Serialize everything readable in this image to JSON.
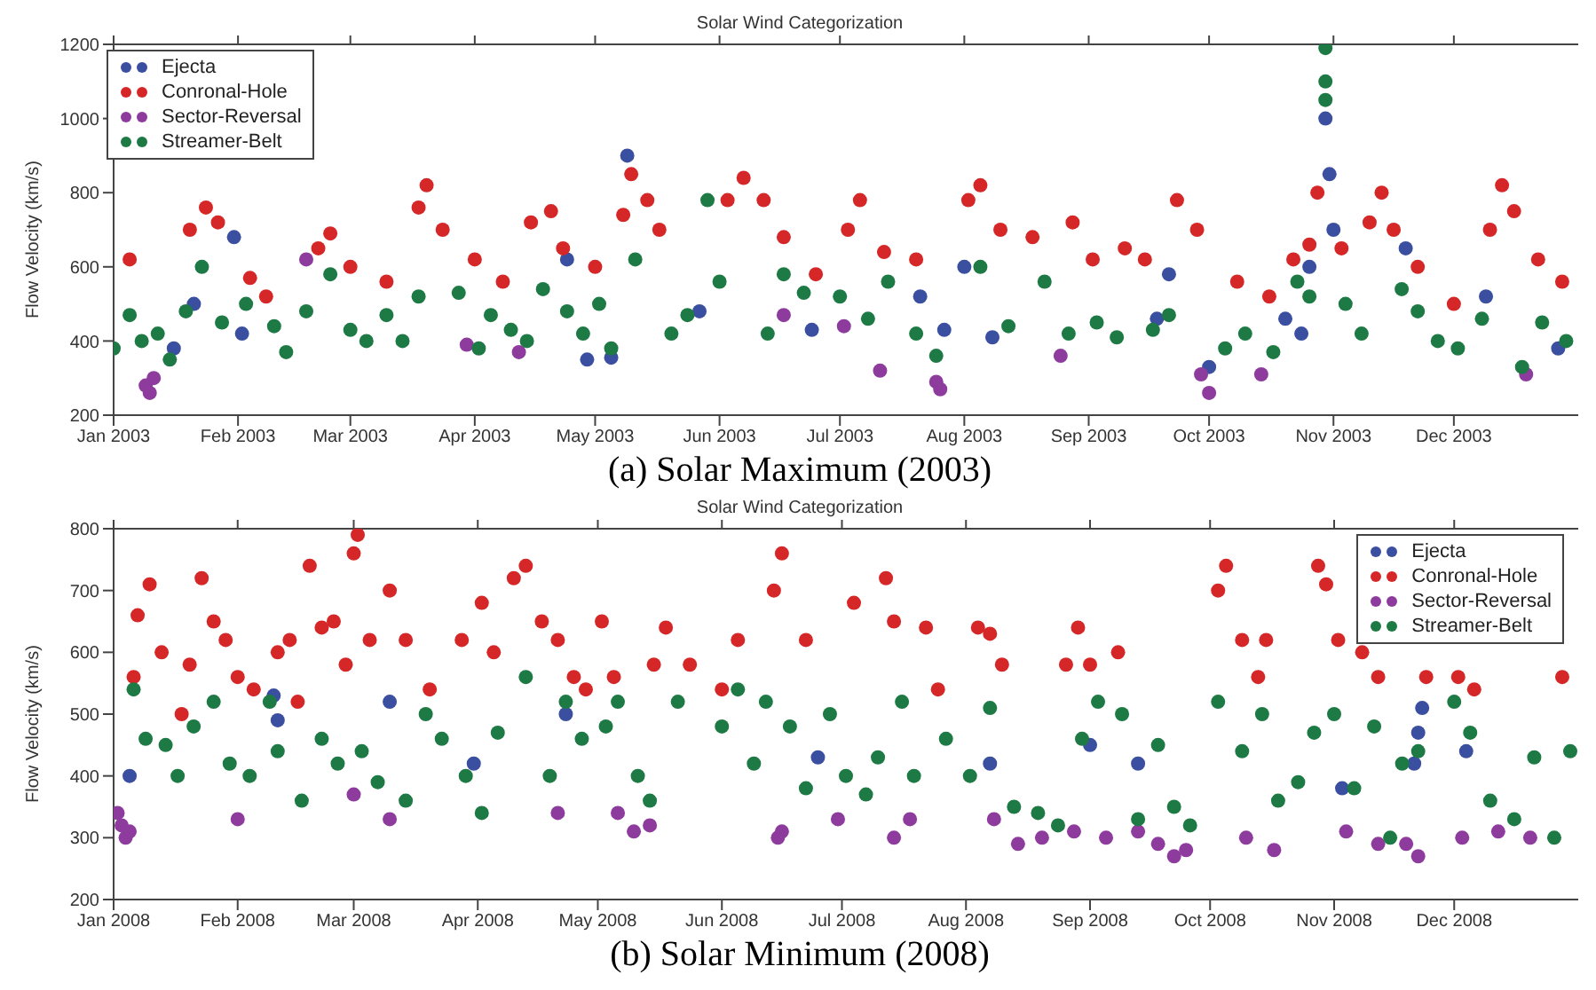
{
  "chart_data": [
    {
      "type": "scatter",
      "title": "Solar Wind Categorization",
      "ylabel": "Flow Velocity (km/s)",
      "annotations": [
        "(a) Solar Maximum (2003)"
      ],
      "legend": "top left",
      "marker": "circle",
      "xlim": [
        "2003-01-01",
        "2004-01-01"
      ],
      "ylim": [
        200,
        1200
      ],
      "yticks": [
        200,
        400,
        600,
        800,
        1000,
        1200
      ],
      "xticks": [
        {
          "value": "2003-01-01",
          "label": "Jan 2003"
        },
        {
          "value": "2003-02-01",
          "label": "Feb 2003"
        },
        {
          "value": "2003-03-01",
          "label": "Mar 2003"
        },
        {
          "value": "2003-04-01",
          "label": "Apr 2003"
        },
        {
          "value": "2003-05-01",
          "label": "May 2003"
        },
        {
          "value": "2003-06-01",
          "label": "Jun 2003"
        },
        {
          "value": "2003-07-01",
          "label": "Jul 2003"
        },
        {
          "value": "2003-08-01",
          "label": "Aug 2003"
        },
        {
          "value": "2003-09-01",
          "label": "Sep 2003"
        },
        {
          "value": "2003-10-01",
          "label": "Oct 2003"
        },
        {
          "value": "2003-11-01",
          "label": "Nov 2003"
        },
        {
          "value": "2003-12-01",
          "label": "Dec 2003"
        }
      ],
      "series": [
        {
          "name": "Ejecta",
          "color": "#3b4fa0",
          "x": [
            "2003-01-16",
            "2003-01-21",
            "2003-01-31",
            "2003-02-02",
            "2003-04-24",
            "2003-04-29",
            "2003-05-05",
            "2003-05-09",
            "2003-05-27",
            "2003-06-24",
            "2003-07-21",
            "2003-07-27",
            "2003-08-01",
            "2003-08-08",
            "2003-09-18",
            "2003-09-21",
            "2003-10-01",
            "2003-10-20",
            "2003-10-24",
            "2003-10-26",
            "2003-10-30",
            "2003-10-31",
            "2003-11-01",
            "2003-11-19",
            "2003-12-09",
            "2003-12-27"
          ],
          "values": [
            380,
            500,
            680,
            420,
            620,
            350,
            355,
            900,
            480,
            430,
            520,
            430,
            600,
            410,
            460,
            580,
            330,
            460,
            420,
            600,
            1000,
            850,
            700,
            650,
            520,
            380
          ]
        },
        {
          "name": "Conronal-Hole",
          "color": "#d62728",
          "x": [
            "2003-01-05",
            "2003-01-20",
            "2003-01-24",
            "2003-01-27",
            "2003-02-04",
            "2003-02-08",
            "2003-02-21",
            "2003-02-24",
            "2003-03-01",
            "2003-03-10",
            "2003-03-18",
            "2003-03-20",
            "2003-03-24",
            "2003-04-01",
            "2003-04-08",
            "2003-04-15",
            "2003-04-20",
            "2003-04-23",
            "2003-05-01",
            "2003-05-08",
            "2003-05-10",
            "2003-05-14",
            "2003-05-17",
            "2003-06-03",
            "2003-06-07",
            "2003-06-12",
            "2003-06-17",
            "2003-06-25",
            "2003-07-03",
            "2003-07-06",
            "2003-07-12",
            "2003-07-20",
            "2003-08-02",
            "2003-08-05",
            "2003-08-10",
            "2003-08-18",
            "2003-08-28",
            "2003-09-02",
            "2003-09-10",
            "2003-09-15",
            "2003-09-23",
            "2003-09-28",
            "2003-10-08",
            "2003-10-16",
            "2003-10-22",
            "2003-10-26",
            "2003-10-28",
            "2003-11-03",
            "2003-11-10",
            "2003-11-13",
            "2003-11-16",
            "2003-11-22",
            "2003-12-01",
            "2003-12-10",
            "2003-12-13",
            "2003-12-16",
            "2003-12-22",
            "2003-12-28"
          ],
          "values": [
            620,
            700,
            760,
            720,
            570,
            520,
            650,
            690,
            600,
            560,
            760,
            820,
            700,
            620,
            560,
            720,
            750,
            650,
            600,
            740,
            850,
            780,
            700,
            780,
            840,
            780,
            680,
            580,
            700,
            780,
            640,
            620,
            780,
            820,
            700,
            680,
            720,
            620,
            650,
            620,
            780,
            700,
            560,
            520,
            620,
            660,
            800,
            650,
            720,
            800,
            700,
            600,
            500,
            700,
            820,
            750,
            620,
            560
          ]
        },
        {
          "name": "Sector-Reversal",
          "color": "#8e3b9e",
          "x": [
            "2003-01-09",
            "2003-01-10",
            "2003-01-11",
            "2003-02-18",
            "2003-03-30",
            "2003-04-12",
            "2003-06-17",
            "2003-07-02",
            "2003-07-11",
            "2003-07-25",
            "2003-07-26",
            "2003-08-25",
            "2003-09-29",
            "2003-10-01",
            "2003-10-14",
            "2003-12-19"
          ],
          "values": [
            280,
            260,
            300,
            620,
            390,
            370,
            470,
            440,
            320,
            290,
            270,
            360,
            310,
            260,
            310,
            310
          ]
        },
        {
          "name": "Streamer-Belt",
          "color": "#1e7a45",
          "x": [
            "2003-01-01",
            "2003-01-05",
            "2003-01-08",
            "2003-01-12",
            "2003-01-15",
            "2003-01-19",
            "2003-01-23",
            "2003-01-28",
            "2003-02-03",
            "2003-02-10",
            "2003-02-13",
            "2003-02-18",
            "2003-02-24",
            "2003-03-01",
            "2003-03-05",
            "2003-03-10",
            "2003-03-14",
            "2003-03-18",
            "2003-03-28",
            "2003-04-02",
            "2003-04-05",
            "2003-04-10",
            "2003-04-14",
            "2003-04-18",
            "2003-04-24",
            "2003-04-28",
            "2003-05-02",
            "2003-05-05",
            "2003-05-11",
            "2003-05-20",
            "2003-05-24",
            "2003-05-29",
            "2003-06-01",
            "2003-06-13",
            "2003-06-17",
            "2003-06-22",
            "2003-07-01",
            "2003-07-08",
            "2003-07-13",
            "2003-07-20",
            "2003-07-25",
            "2003-08-05",
            "2003-08-12",
            "2003-08-21",
            "2003-08-27",
            "2003-09-03",
            "2003-09-08",
            "2003-09-17",
            "2003-09-21",
            "2003-10-05",
            "2003-10-10",
            "2003-10-17",
            "2003-10-23",
            "2003-10-26",
            "2003-10-30",
            "2003-10-30",
            "2003-10-30",
            "2003-11-04",
            "2003-11-08",
            "2003-11-18",
            "2003-11-22",
            "2003-11-27",
            "2003-12-02",
            "2003-12-08",
            "2003-12-18",
            "2003-12-23",
            "2003-12-29"
          ],
          "values": [
            380,
            470,
            400,
            420,
            350,
            480,
            600,
            450,
            500,
            440,
            370,
            480,
            580,
            430,
            400,
            470,
            400,
            520,
            530,
            380,
            470,
            430,
            400,
            540,
            480,
            420,
            500,
            380,
            620,
            420,
            470,
            780,
            560,
            420,
            580,
            530,
            520,
            460,
            560,
            420,
            360,
            600,
            440,
            560,
            420,
            450,
            410,
            430,
            470,
            380,
            420,
            370,
            560,
            520,
            1190,
            1100,
            1050,
            500,
            420,
            540,
            480,
            400,
            380,
            460,
            330,
            450,
            400
          ]
        }
      ]
    },
    {
      "type": "scatter",
      "title": "Solar Wind Categorization",
      "ylabel": "Flow Velocity (km/s)",
      "annotations": [
        "(b) Solar Minimum (2008)"
      ],
      "legend": "top right",
      "marker": "circle",
      "xlim": [
        "2008-01-01",
        "2009-01-01"
      ],
      "ylim": [
        200,
        800
      ],
      "yticks": [
        200,
        300,
        400,
        500,
        600,
        700,
        800
      ],
      "xticks": [
        {
          "value": "2008-01-01",
          "label": "Jan 2008"
        },
        {
          "value": "2008-02-01",
          "label": "Feb 2008"
        },
        {
          "value": "2008-03-01",
          "label": "Mar 2008"
        },
        {
          "value": "2008-04-01",
          "label": "Apr 2008"
        },
        {
          "value": "2008-05-01",
          "label": "May 2008"
        },
        {
          "value": "2008-06-01",
          "label": "Jun 2008"
        },
        {
          "value": "2008-07-01",
          "label": "Jul 2008"
        },
        {
          "value": "2008-08-01",
          "label": "Aug 2008"
        },
        {
          "value": "2008-09-01",
          "label": "Sep 2008"
        },
        {
          "value": "2008-10-01",
          "label": "Oct 2008"
        },
        {
          "value": "2008-11-01",
          "label": "Nov 2008"
        },
        {
          "value": "2008-12-01",
          "label": "Dec 2008"
        }
      ],
      "series": [
        {
          "name": "Ejecta",
          "color": "#3b4fa0",
          "x": [
            "2008-01-05",
            "2008-02-10",
            "2008-02-11",
            "2008-03-10",
            "2008-03-31",
            "2008-04-23",
            "2008-06-25",
            "2008-08-07",
            "2008-09-01",
            "2008-09-13",
            "2008-11-03",
            "2008-11-21",
            "2008-11-22",
            "2008-11-23",
            "2008-12-04"
          ],
          "values": [
            400,
            530,
            490,
            520,
            420,
            500,
            430,
            420,
            450,
            420,
            380,
            420,
            470,
            510,
            440
          ]
        },
        {
          "name": "Conronal-Hole",
          "color": "#d62728",
          "x": [
            "2008-01-06",
            "2008-01-07",
            "2008-01-10",
            "2008-01-13",
            "2008-01-18",
            "2008-01-20",
            "2008-01-23",
            "2008-01-26",
            "2008-01-29",
            "2008-02-01",
            "2008-02-05",
            "2008-02-11",
            "2008-02-14",
            "2008-02-16",
            "2008-02-19",
            "2008-02-22",
            "2008-02-25",
            "2008-02-28",
            "2008-03-01",
            "2008-03-02",
            "2008-03-05",
            "2008-03-10",
            "2008-03-14",
            "2008-03-20",
            "2008-03-28",
            "2008-04-02",
            "2008-04-05",
            "2008-04-10",
            "2008-04-13",
            "2008-04-17",
            "2008-04-21",
            "2008-04-25",
            "2008-04-28",
            "2008-05-02",
            "2008-05-05",
            "2008-05-15",
            "2008-05-18",
            "2008-05-24",
            "2008-06-01",
            "2008-06-05",
            "2008-06-14",
            "2008-06-16",
            "2008-06-22",
            "2008-07-04",
            "2008-07-12",
            "2008-07-14",
            "2008-07-22",
            "2008-07-25",
            "2008-08-04",
            "2008-08-07",
            "2008-08-10",
            "2008-08-26",
            "2008-08-29",
            "2008-09-01",
            "2008-09-08",
            "2008-10-03",
            "2008-10-05",
            "2008-10-09",
            "2008-10-13",
            "2008-10-15",
            "2008-10-28",
            "2008-10-30",
            "2008-11-02",
            "2008-11-08",
            "2008-11-12",
            "2008-11-24",
            "2008-12-02",
            "2008-12-06",
            "2008-12-28"
          ],
          "values": [
            560,
            660,
            710,
            600,
            500,
            580,
            720,
            650,
            620,
            560,
            540,
            600,
            620,
            520,
            740,
            640,
            650,
            580,
            760,
            790,
            620,
            700,
            620,
            540,
            620,
            680,
            600,
            720,
            740,
            650,
            620,
            560,
            540,
            650,
            560,
            580,
            640,
            580,
            540,
            620,
            700,
            760,
            620,
            680,
            720,
            650,
            640,
            540,
            640,
            630,
            580,
            580,
            640,
            580,
            600,
            700,
            740,
            620,
            560,
            620,
            740,
            710,
            620,
            600,
            560,
            560,
            560,
            540,
            560
          ]
        },
        {
          "name": "Sector-Reversal",
          "color": "#8e3b9e",
          "x": [
            "2008-01-02",
            "2008-01-03",
            "2008-01-04",
            "2008-01-05",
            "2008-02-01",
            "2008-03-01",
            "2008-03-10",
            "2008-04-21",
            "2008-05-06",
            "2008-05-10",
            "2008-05-14",
            "2008-06-15",
            "2008-06-16",
            "2008-06-30",
            "2008-07-14",
            "2008-07-18",
            "2008-08-08",
            "2008-08-14",
            "2008-08-20",
            "2008-08-28",
            "2008-09-05",
            "2008-09-13",
            "2008-09-18",
            "2008-09-22",
            "2008-09-25",
            "2008-10-10",
            "2008-10-17",
            "2008-11-04",
            "2008-11-12",
            "2008-11-19",
            "2008-11-22",
            "2008-12-03",
            "2008-12-12",
            "2008-12-20"
          ],
          "values": [
            340,
            320,
            300,
            310,
            330,
            370,
            330,
            340,
            340,
            310,
            320,
            300,
            310,
            330,
            300,
            330,
            330,
            290,
            300,
            310,
            300,
            310,
            290,
            270,
            280,
            300,
            280,
            310,
            290,
            290,
            270,
            300,
            310,
            300
          ]
        },
        {
          "name": "Streamer-Belt",
          "color": "#1e7a45",
          "x": [
            "2008-01-06",
            "2008-01-09",
            "2008-01-14",
            "2008-01-17",
            "2008-01-21",
            "2008-01-26",
            "2008-01-30",
            "2008-02-04",
            "2008-02-09",
            "2008-02-11",
            "2008-02-17",
            "2008-02-22",
            "2008-02-26",
            "2008-03-03",
            "2008-03-07",
            "2008-03-14",
            "2008-03-19",
            "2008-03-23",
            "2008-03-29",
            "2008-04-02",
            "2008-04-06",
            "2008-04-13",
            "2008-04-19",
            "2008-04-23",
            "2008-04-27",
            "2008-05-03",
            "2008-05-06",
            "2008-05-11",
            "2008-05-14",
            "2008-05-21",
            "2008-06-01",
            "2008-06-05",
            "2008-06-09",
            "2008-06-12",
            "2008-06-18",
            "2008-06-22",
            "2008-06-28",
            "2008-07-02",
            "2008-07-07",
            "2008-07-10",
            "2008-07-16",
            "2008-07-19",
            "2008-07-27",
            "2008-08-02",
            "2008-08-07",
            "2008-08-13",
            "2008-08-19",
            "2008-08-24",
            "2008-08-30",
            "2008-09-03",
            "2008-09-09",
            "2008-09-13",
            "2008-09-18",
            "2008-09-22",
            "2008-09-26",
            "2008-10-03",
            "2008-10-09",
            "2008-10-14",
            "2008-10-18",
            "2008-10-23",
            "2008-10-27",
            "2008-11-01",
            "2008-11-06",
            "2008-11-11",
            "2008-11-15",
            "2008-11-18",
            "2008-11-22",
            "2008-12-01",
            "2008-12-05",
            "2008-12-10",
            "2008-12-16",
            "2008-12-21",
            "2008-12-26",
            "2008-12-30"
          ],
          "values": [
            540,
            460,
            450,
            400,
            480,
            520,
            420,
            400,
            520,
            440,
            360,
            460,
            420,
            440,
            390,
            360,
            500,
            460,
            400,
            340,
            470,
            560,
            400,
            520,
            460,
            480,
            520,
            400,
            360,
            520,
            480,
            540,
            420,
            520,
            480,
            380,
            500,
            400,
            370,
            430,
            520,
            400,
            460,
            400,
            510,
            350,
            340,
            320,
            460,
            520,
            500,
            330,
            450,
            350,
            320,
            520,
            440,
            500,
            360,
            390,
            470,
            500,
            380,
            480,
            300,
            420,
            440,
            520,
            470,
            360,
            330,
            430,
            300,
            440
          ]
        }
      ]
    }
  ]
}
